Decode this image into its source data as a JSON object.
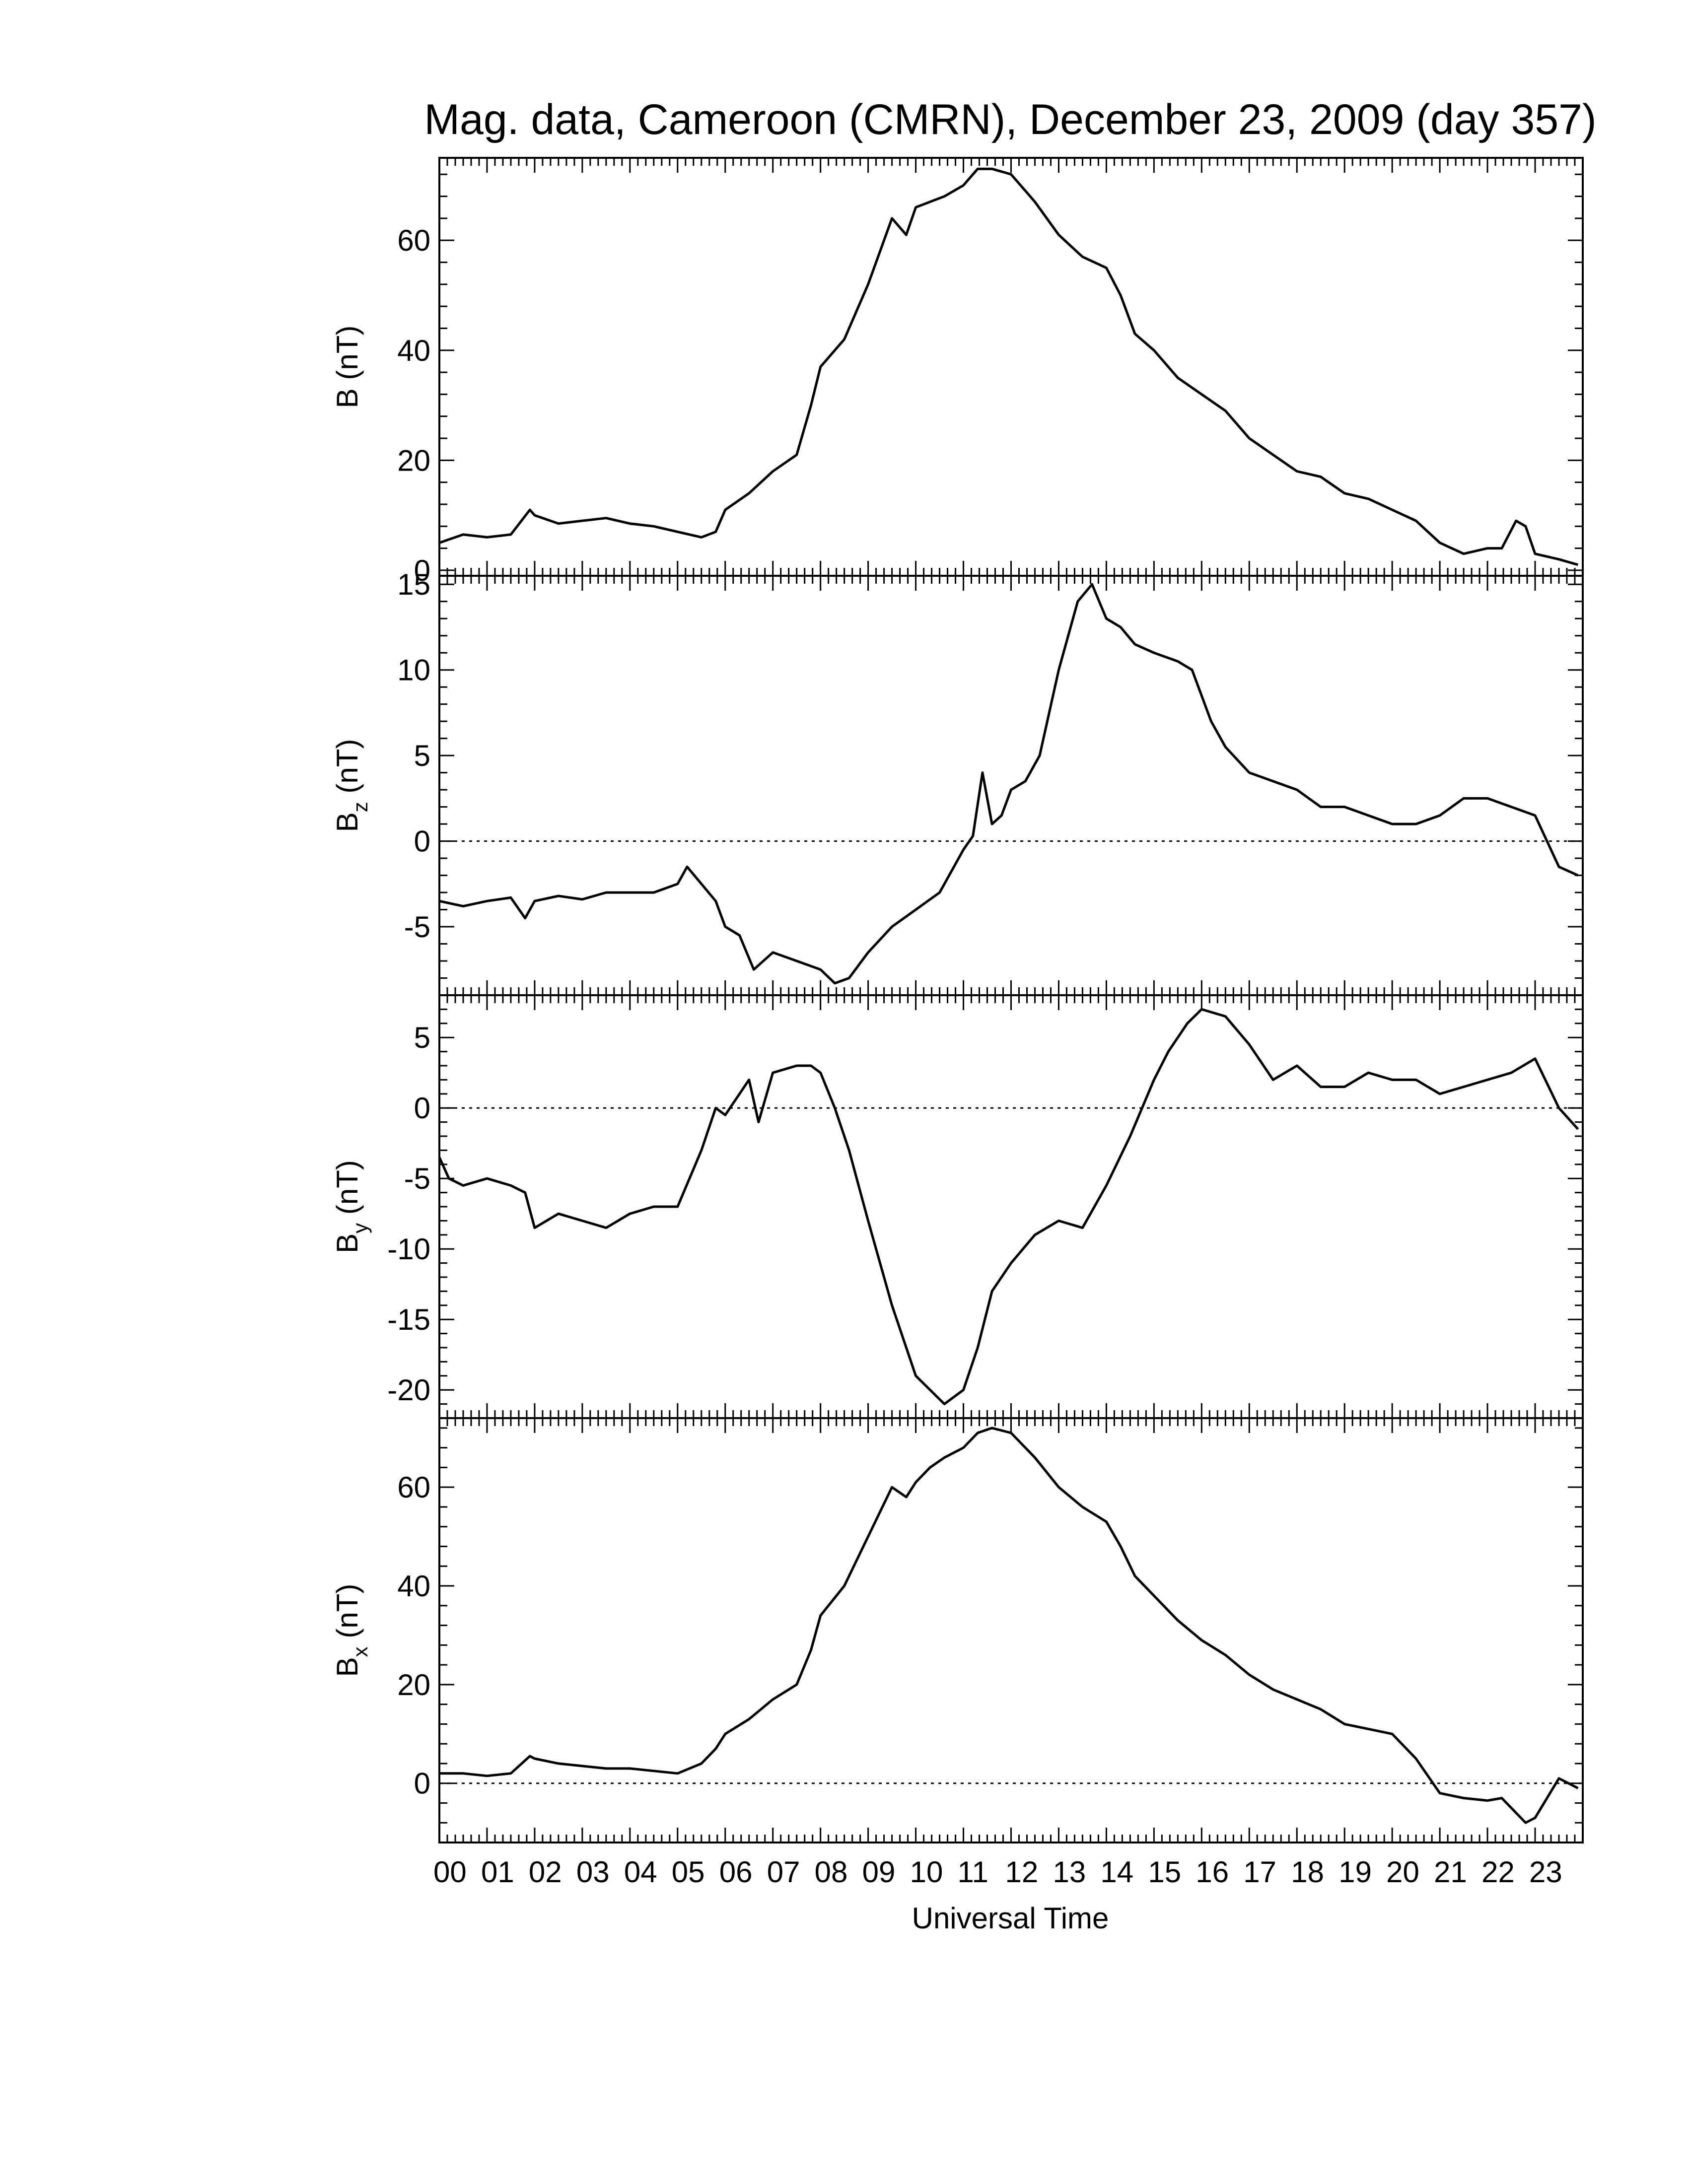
{
  "chart_data": {
    "type": "line",
    "title": "Mag. data, Cameroon (CMRN), December 23, 2009 (day 357)",
    "xlabel": "Universal Time",
    "x_tick_labels": [
      "00",
      "01",
      "02",
      "03",
      "04",
      "05",
      "06",
      "07",
      "08",
      "09",
      "10",
      "11",
      "12",
      "13",
      "14",
      "15",
      "16",
      "17",
      "18",
      "19",
      "20",
      "21",
      "22",
      "23"
    ],
    "xlim": [
      0,
      24
    ],
    "line_color": "#000000",
    "panels": [
      {
        "id": "B",
        "ylabel_base": "B",
        "ylabel_sub": "",
        "ylabel_unit": " (nT)",
        "ylim": [
          -1,
          75
        ],
        "yticks": [
          0,
          20,
          40,
          60
        ],
        "zero_line": false,
        "x": [
          0.0,
          0.5,
          1.0,
          1.5,
          1.9,
          2.0,
          2.5,
          3.0,
          3.5,
          4.0,
          4.5,
          5.0,
          5.5,
          5.8,
          6.0,
          6.5,
          7.0,
          7.5,
          7.8,
          8.0,
          8.5,
          9.0,
          9.5,
          9.8,
          10.0,
          10.3,
          10.6,
          11.0,
          11.3,
          11.6,
          12.0,
          12.5,
          13.0,
          13.5,
          14.0,
          14.3,
          14.6,
          15.0,
          15.5,
          16.0,
          16.5,
          17.0,
          17.5,
          18.0,
          18.5,
          19.0,
          19.5,
          20.0,
          20.5,
          21.0,
          21.5,
          22.0,
          22.3,
          22.6,
          22.8,
          23.0,
          23.5,
          23.9
        ],
        "values": [
          5,
          6.5,
          6,
          6.5,
          11,
          10,
          8.5,
          9,
          9.5,
          8.5,
          8,
          7,
          6,
          7,
          11,
          14,
          18,
          21,
          30,
          37,
          42,
          52,
          64,
          61,
          66,
          67,
          68,
          70,
          73,
          73,
          72,
          67,
          61,
          57,
          55,
          50,
          43,
          40,
          35,
          32,
          29,
          24,
          21,
          18,
          17,
          14,
          13,
          11,
          9,
          5,
          3,
          4,
          4,
          9,
          8,
          3,
          2,
          1
        ]
      },
      {
        "id": "Bz",
        "ylabel_base": "B",
        "ylabel_sub": "z",
        "ylabel_unit": " (nT)",
        "ylim": [
          -9,
          15.5
        ],
        "yticks": [
          -5,
          0,
          5,
          10,
          15
        ],
        "zero_line": true,
        "x": [
          0.0,
          0.5,
          1.0,
          1.5,
          1.8,
          2.0,
          2.5,
          3.0,
          3.5,
          4.0,
          4.5,
          5.0,
          5.2,
          5.5,
          5.8,
          6.0,
          6.3,
          6.6,
          7.0,
          7.5,
          8.0,
          8.3,
          8.6,
          9.0,
          9.5,
          10.0,
          10.5,
          10.8,
          11.0,
          11.2,
          11.4,
          11.6,
          11.8,
          12.0,
          12.3,
          12.6,
          13.0,
          13.4,
          13.7,
          14.0,
          14.3,
          14.6,
          15.0,
          15.5,
          15.8,
          16.2,
          16.5,
          17.0,
          17.5,
          18.0,
          18.5,
          19.0,
          19.5,
          20.0,
          20.5,
          21.0,
          21.5,
          22.0,
          22.5,
          23.0,
          23.5,
          23.9
        ],
        "values": [
          -3.5,
          -3.8,
          -3.5,
          -3.3,
          -4.5,
          -3.5,
          -3.2,
          -3.4,
          -3,
          -3,
          -3,
          -2.5,
          -1.5,
          -2.5,
          -3.5,
          -5,
          -5.5,
          -7.5,
          -6.5,
          -7,
          -7.5,
          -8.3,
          -8,
          -6.5,
          -5,
          -4,
          -3,
          -1.5,
          -0.5,
          0.3,
          4,
          1,
          1.5,
          3,
          3.5,
          5,
          10,
          14,
          15,
          13,
          12.5,
          11.5,
          11,
          10.5,
          10,
          7,
          5.5,
          4,
          3.5,
          3,
          2,
          2,
          1.5,
          1,
          1,
          1.5,
          2.5,
          2.5,
          2,
          1.5,
          -1.5,
          -2
        ]
      },
      {
        "id": "By",
        "ylabel_base": "B",
        "ylabel_sub": "y",
        "ylabel_unit": " (nT)",
        "ylim": [
          -22,
          8
        ],
        "yticks": [
          -20,
          -15,
          -10,
          -5,
          0,
          5
        ],
        "zero_line": true,
        "x": [
          0.0,
          0.2,
          0.5,
          1.0,
          1.5,
          1.8,
          2.0,
          2.5,
          3.0,
          3.5,
          4.0,
          4.5,
          5.0,
          5.5,
          5.8,
          6.0,
          6.5,
          6.7,
          7.0,
          7.5,
          7.8,
          8.0,
          8.3,
          8.6,
          9.0,
          9.5,
          10.0,
          10.3,
          10.6,
          11.0,
          11.3,
          11.6,
          12.0,
          12.5,
          13.0,
          13.5,
          14.0,
          14.5,
          15.0,
          15.3,
          15.7,
          16.0,
          16.5,
          17.0,
          17.5,
          18.0,
          18.5,
          19.0,
          19.5,
          20.0,
          20.5,
          21.0,
          21.5,
          22.0,
          22.5,
          23.0,
          23.5,
          23.9
        ],
        "values": [
          -3.5,
          -5,
          -5.5,
          -5,
          -5.5,
          -6,
          -8.5,
          -7.5,
          -8,
          -8.5,
          -7.5,
          -7,
          -7,
          -3,
          0,
          -0.5,
          2,
          -1,
          2.5,
          3,
          3,
          2.5,
          0,
          -3,
          -8,
          -14,
          -19,
          -20,
          -21,
          -20,
          -17,
          -13,
          -11,
          -9,
          -8,
          -8.5,
          -5.5,
          -2,
          2,
          4,
          6,
          7,
          6.5,
          4.5,
          2,
          3,
          1.5,
          1.5,
          2.5,
          2,
          2,
          1,
          1.5,
          2,
          2.5,
          3.5,
          0,
          -1.5
        ]
      },
      {
        "id": "Bx",
        "ylabel_base": "B",
        "ylabel_sub": "x",
        "ylabel_unit": " (nT)",
        "ylim": [
          -12,
          74
        ],
        "yticks": [
          0,
          20,
          40,
          60
        ],
        "zero_line": true,
        "x": [
          0.0,
          0.5,
          1.0,
          1.5,
          1.9,
          2.0,
          2.5,
          3.0,
          3.5,
          4.0,
          4.5,
          5.0,
          5.5,
          5.8,
          6.0,
          6.5,
          7.0,
          7.5,
          7.8,
          8.0,
          8.5,
          9.0,
          9.5,
          9.8,
          10.0,
          10.3,
          10.6,
          11.0,
          11.3,
          11.6,
          12.0,
          12.5,
          13.0,
          13.5,
          14.0,
          14.3,
          14.6,
          15.0,
          15.5,
          16.0,
          16.5,
          17.0,
          17.5,
          18.0,
          18.5,
          19.0,
          19.5,
          20.0,
          20.5,
          21.0,
          21.5,
          22.0,
          22.3,
          22.6,
          22.8,
          23.0,
          23.5,
          23.9
        ],
        "values": [
          2,
          2,
          1.5,
          2,
          5.5,
          5,
          4,
          3.5,
          3,
          3,
          2.5,
          2,
          4,
          7,
          10,
          13,
          17,
          20,
          27,
          34,
          40,
          50,
          60,
          58,
          61,
          64,
          66,
          68,
          71,
          72,
          71,
          66,
          60,
          56,
          53,
          48,
          42,
          38,
          33,
          29,
          26,
          22,
          19,
          17,
          15,
          12,
          11,
          10,
          5,
          -2,
          -3,
          -3.5,
          -3,
          -6,
          -8,
          -7,
          1,
          -1
        ]
      }
    ]
  }
}
